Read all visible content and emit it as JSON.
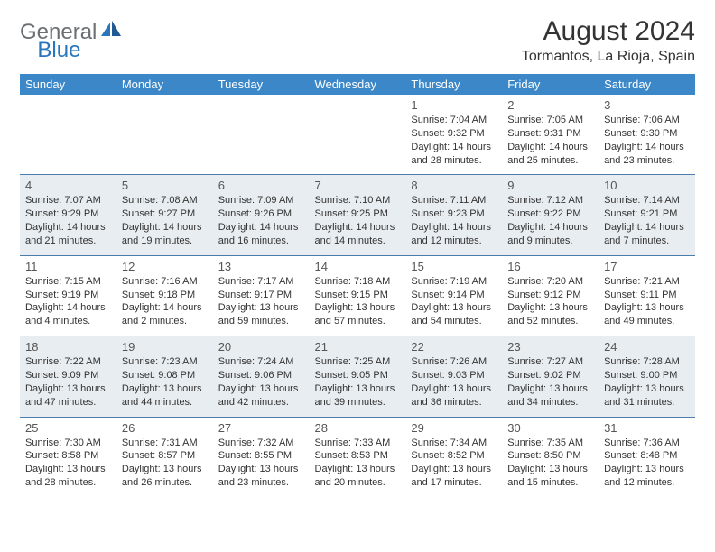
{
  "logo": {
    "text1": "General",
    "text2": "Blue"
  },
  "title": "August 2024",
  "location": "Tormantos, La Rioja, Spain",
  "day_headers": [
    "Sunday",
    "Monday",
    "Tuesday",
    "Wednesday",
    "Thursday",
    "Friday",
    "Saturday"
  ],
  "colors": {
    "header_bg": "#3b87c8",
    "header_text": "#ffffff",
    "row_stripe": "#e8edf1",
    "row_border": "#4a7cad",
    "logo_gray": "#6b6f73",
    "logo_blue": "#2a76bd"
  },
  "weeks": [
    [
      null,
      null,
      null,
      null,
      {
        "n": "1",
        "sunrise": "Sunrise: 7:04 AM",
        "sunset": "Sunset: 9:32 PM",
        "daylight": "Daylight: 14 hours and 28 minutes."
      },
      {
        "n": "2",
        "sunrise": "Sunrise: 7:05 AM",
        "sunset": "Sunset: 9:31 PM",
        "daylight": "Daylight: 14 hours and 25 minutes."
      },
      {
        "n": "3",
        "sunrise": "Sunrise: 7:06 AM",
        "sunset": "Sunset: 9:30 PM",
        "daylight": "Daylight: 14 hours and 23 minutes."
      }
    ],
    [
      {
        "n": "4",
        "sunrise": "Sunrise: 7:07 AM",
        "sunset": "Sunset: 9:29 PM",
        "daylight": "Daylight: 14 hours and 21 minutes."
      },
      {
        "n": "5",
        "sunrise": "Sunrise: 7:08 AM",
        "sunset": "Sunset: 9:27 PM",
        "daylight": "Daylight: 14 hours and 19 minutes."
      },
      {
        "n": "6",
        "sunrise": "Sunrise: 7:09 AM",
        "sunset": "Sunset: 9:26 PM",
        "daylight": "Daylight: 14 hours and 16 minutes."
      },
      {
        "n": "7",
        "sunrise": "Sunrise: 7:10 AM",
        "sunset": "Sunset: 9:25 PM",
        "daylight": "Daylight: 14 hours and 14 minutes."
      },
      {
        "n": "8",
        "sunrise": "Sunrise: 7:11 AM",
        "sunset": "Sunset: 9:23 PM",
        "daylight": "Daylight: 14 hours and 12 minutes."
      },
      {
        "n": "9",
        "sunrise": "Sunrise: 7:12 AM",
        "sunset": "Sunset: 9:22 PM",
        "daylight": "Daylight: 14 hours and 9 minutes."
      },
      {
        "n": "10",
        "sunrise": "Sunrise: 7:14 AM",
        "sunset": "Sunset: 9:21 PM",
        "daylight": "Daylight: 14 hours and 7 minutes."
      }
    ],
    [
      {
        "n": "11",
        "sunrise": "Sunrise: 7:15 AM",
        "sunset": "Sunset: 9:19 PM",
        "daylight": "Daylight: 14 hours and 4 minutes."
      },
      {
        "n": "12",
        "sunrise": "Sunrise: 7:16 AM",
        "sunset": "Sunset: 9:18 PM",
        "daylight": "Daylight: 14 hours and 2 minutes."
      },
      {
        "n": "13",
        "sunrise": "Sunrise: 7:17 AM",
        "sunset": "Sunset: 9:17 PM",
        "daylight": "Daylight: 13 hours and 59 minutes."
      },
      {
        "n": "14",
        "sunrise": "Sunrise: 7:18 AM",
        "sunset": "Sunset: 9:15 PM",
        "daylight": "Daylight: 13 hours and 57 minutes."
      },
      {
        "n": "15",
        "sunrise": "Sunrise: 7:19 AM",
        "sunset": "Sunset: 9:14 PM",
        "daylight": "Daylight: 13 hours and 54 minutes."
      },
      {
        "n": "16",
        "sunrise": "Sunrise: 7:20 AM",
        "sunset": "Sunset: 9:12 PM",
        "daylight": "Daylight: 13 hours and 52 minutes."
      },
      {
        "n": "17",
        "sunrise": "Sunrise: 7:21 AM",
        "sunset": "Sunset: 9:11 PM",
        "daylight": "Daylight: 13 hours and 49 minutes."
      }
    ],
    [
      {
        "n": "18",
        "sunrise": "Sunrise: 7:22 AM",
        "sunset": "Sunset: 9:09 PM",
        "daylight": "Daylight: 13 hours and 47 minutes."
      },
      {
        "n": "19",
        "sunrise": "Sunrise: 7:23 AM",
        "sunset": "Sunset: 9:08 PM",
        "daylight": "Daylight: 13 hours and 44 minutes."
      },
      {
        "n": "20",
        "sunrise": "Sunrise: 7:24 AM",
        "sunset": "Sunset: 9:06 PM",
        "daylight": "Daylight: 13 hours and 42 minutes."
      },
      {
        "n": "21",
        "sunrise": "Sunrise: 7:25 AM",
        "sunset": "Sunset: 9:05 PM",
        "daylight": "Daylight: 13 hours and 39 minutes."
      },
      {
        "n": "22",
        "sunrise": "Sunrise: 7:26 AM",
        "sunset": "Sunset: 9:03 PM",
        "daylight": "Daylight: 13 hours and 36 minutes."
      },
      {
        "n": "23",
        "sunrise": "Sunrise: 7:27 AM",
        "sunset": "Sunset: 9:02 PM",
        "daylight": "Daylight: 13 hours and 34 minutes."
      },
      {
        "n": "24",
        "sunrise": "Sunrise: 7:28 AM",
        "sunset": "Sunset: 9:00 PM",
        "daylight": "Daylight: 13 hours and 31 minutes."
      }
    ],
    [
      {
        "n": "25",
        "sunrise": "Sunrise: 7:30 AM",
        "sunset": "Sunset: 8:58 PM",
        "daylight": "Daylight: 13 hours and 28 minutes."
      },
      {
        "n": "26",
        "sunrise": "Sunrise: 7:31 AM",
        "sunset": "Sunset: 8:57 PM",
        "daylight": "Daylight: 13 hours and 26 minutes."
      },
      {
        "n": "27",
        "sunrise": "Sunrise: 7:32 AM",
        "sunset": "Sunset: 8:55 PM",
        "daylight": "Daylight: 13 hours and 23 minutes."
      },
      {
        "n": "28",
        "sunrise": "Sunrise: 7:33 AM",
        "sunset": "Sunset: 8:53 PM",
        "daylight": "Daylight: 13 hours and 20 minutes."
      },
      {
        "n": "29",
        "sunrise": "Sunrise: 7:34 AM",
        "sunset": "Sunset: 8:52 PM",
        "daylight": "Daylight: 13 hours and 17 minutes."
      },
      {
        "n": "30",
        "sunrise": "Sunrise: 7:35 AM",
        "sunset": "Sunset: 8:50 PM",
        "daylight": "Daylight: 13 hours and 15 minutes."
      },
      {
        "n": "31",
        "sunrise": "Sunrise: 7:36 AM",
        "sunset": "Sunset: 8:48 PM",
        "daylight": "Daylight: 13 hours and 12 minutes."
      }
    ]
  ]
}
